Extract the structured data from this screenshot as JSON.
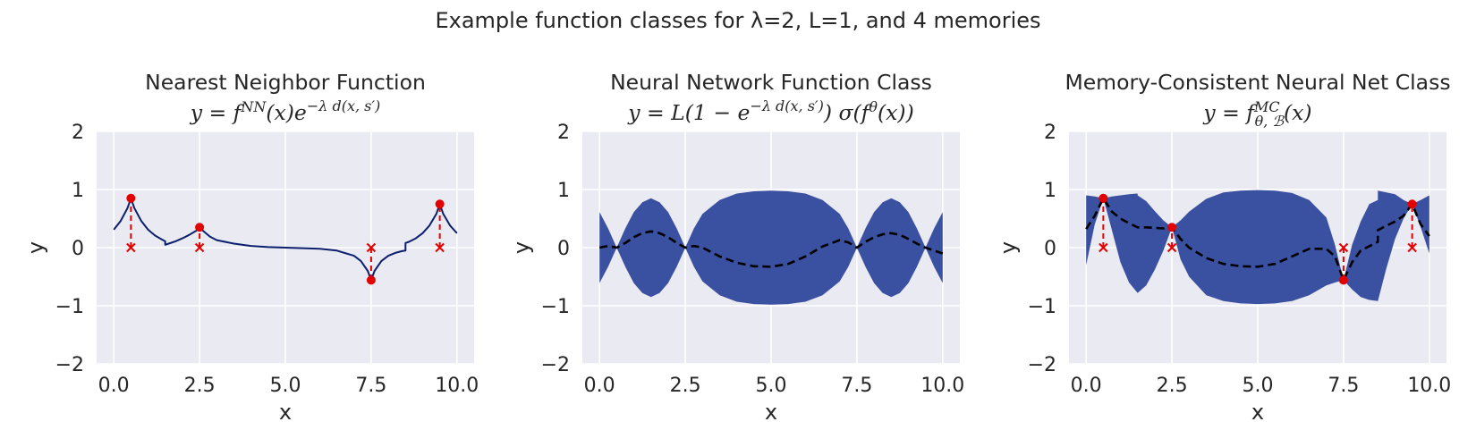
{
  "figure": {
    "suptitle": "Example function classes for λ=2, L=1, and 4 memories"
  },
  "chart_data": [
    {
      "type": "line",
      "title": "Nearest Neighbor Function",
      "subtitle": "y = f^NN(x)e^(−λ d(x,s′))",
      "xlabel": "x",
      "ylabel": "y",
      "xlim": [
        -0.5,
        10.5
      ],
      "ylim": [
        -2,
        2
      ],
      "xticks": [
        0.0,
        2.5,
        5.0,
        7.5,
        10.0
      ],
      "yticks": [
        -2,
        -1,
        0,
        1,
        2
      ],
      "grid": true,
      "memories": {
        "x": [
          0.5,
          2.5,
          7.5,
          9.5
        ],
        "y": [
          0.85,
          0.35,
          -0.56,
          0.75
        ]
      },
      "series": [
        {
          "type": "line",
          "color": "#0b1f6e",
          "x": [
            0.0,
            0.2,
            0.4,
            0.5,
            0.6,
            0.8,
            1.0,
            1.2,
            1.4,
            1.5,
            1.5,
            1.6,
            1.8,
            2.0,
            2.2,
            2.4,
            2.5,
            2.6,
            2.8,
            3.0,
            3.5,
            4.0,
            4.5,
            5.0,
            5.5,
            6.0,
            6.5,
            7.0,
            7.2,
            7.4,
            7.5,
            7.6,
            7.8,
            8.0,
            8.2,
            8.4,
            8.5,
            8.5,
            8.6,
            8.8,
            9.0,
            9.2,
            9.4,
            9.5,
            9.6,
            9.8,
            10.0
          ],
          "y": [
            0.31,
            0.46,
            0.68,
            0.85,
            0.68,
            0.46,
            0.31,
            0.21,
            0.14,
            0.11,
            0.05,
            0.07,
            0.11,
            0.16,
            0.22,
            0.29,
            0.35,
            0.29,
            0.19,
            0.13,
            0.07,
            0.03,
            0.01,
            0.0,
            -0.01,
            -0.02,
            -0.05,
            -0.14,
            -0.23,
            -0.4,
            -0.56,
            -0.4,
            -0.23,
            -0.14,
            -0.09,
            -0.06,
            -0.05,
            0.08,
            0.1,
            0.16,
            0.25,
            0.38,
            0.58,
            0.75,
            0.58,
            0.38,
            0.25
          ]
        },
        {
          "type": "scatter",
          "name": "memory",
          "color": "#e30000",
          "x": [
            0.5,
            2.5,
            7.5,
            9.5
          ],
          "y": [
            0.85,
            0.35,
            -0.56,
            0.75
          ]
        },
        {
          "type": "marker_x",
          "color": "#e30000",
          "x": [
            0.5,
            2.5,
            7.5,
            9.5
          ],
          "y": [
            0.0,
            0.0,
            0.0,
            0.0
          ]
        }
      ]
    },
    {
      "type": "area",
      "title": "Neural Network Function Class",
      "subtitle": "y = L(1 − e^(−λ d(x,s′))) σ(f^θ(x))",
      "xlabel": "x",
      "ylabel": "y",
      "xlim": [
        -0.5,
        10.5
      ],
      "ylim": [
        -2,
        2
      ],
      "xticks": [
        0.0,
        2.5,
        5.0,
        7.5,
        10.0
      ],
      "yticks": [
        -2,
        -1,
        0,
        1,
        2
      ],
      "grid": true,
      "series": [
        {
          "type": "band",
          "color": "#3a50a0",
          "x": [
            0.0,
            0.25,
            0.5,
            0.75,
            1.0,
            1.25,
            1.5,
            1.75,
            2.0,
            2.25,
            2.5,
            2.75,
            3.0,
            3.5,
            4.0,
            4.5,
            5.0,
            5.5,
            6.0,
            6.5,
            7.0,
            7.25,
            7.5,
            7.75,
            8.0,
            8.25,
            8.5,
            8.75,
            9.0,
            9.25,
            9.5,
            9.75,
            10.0
          ],
          "upper": [
            0.61,
            0.33,
            0.0,
            0.33,
            0.61,
            0.78,
            0.85,
            0.78,
            0.61,
            0.33,
            0.0,
            0.33,
            0.58,
            0.82,
            0.93,
            0.97,
            0.98,
            0.97,
            0.93,
            0.82,
            0.58,
            0.33,
            0.0,
            0.33,
            0.61,
            0.78,
            0.85,
            0.78,
            0.61,
            0.33,
            0.0,
            0.33,
            0.61
          ],
          "lower": [
            -0.61,
            -0.33,
            0.0,
            -0.33,
            -0.61,
            -0.78,
            -0.85,
            -0.78,
            -0.61,
            -0.33,
            0.0,
            -0.33,
            -0.58,
            -0.82,
            -0.93,
            -0.97,
            -0.98,
            -0.97,
            -0.93,
            -0.82,
            -0.58,
            -0.33,
            0.0,
            -0.33,
            -0.61,
            -0.78,
            -0.85,
            -0.78,
            -0.61,
            -0.33,
            0.0,
            -0.33,
            -0.61
          ]
        },
        {
          "type": "dashed_line",
          "color": "#000000",
          "x": [
            0.0,
            0.25,
            0.5,
            0.75,
            1.0,
            1.25,
            1.5,
            1.75,
            2.0,
            2.25,
            2.5,
            2.75,
            3.0,
            3.5,
            4.0,
            4.5,
            5.0,
            5.5,
            6.0,
            6.5,
            7.0,
            7.25,
            7.5,
            7.75,
            8.0,
            8.25,
            8.5,
            8.75,
            9.0,
            9.25,
            9.5,
            9.75,
            10.0
          ],
          "y": [
            0.0,
            0.03,
            0.0,
            0.08,
            0.18,
            0.25,
            0.28,
            0.25,
            0.18,
            0.08,
            0.0,
            0.03,
            0.0,
            -0.15,
            -0.26,
            -0.32,
            -0.33,
            -0.28,
            -0.15,
            0.02,
            0.13,
            0.09,
            0.0,
            0.1,
            0.18,
            0.23,
            0.25,
            0.22,
            0.15,
            0.07,
            0.0,
            -0.05,
            -0.1
          ]
        }
      ]
    },
    {
      "type": "area",
      "title": "Memory-Consistent Neural Net Class",
      "subtitle": "y = f^MC_(θ,ℬ)(x)",
      "xlabel": "x",
      "ylabel": "y",
      "xlim": [
        -0.5,
        10.5
      ],
      "ylim": [
        -2,
        2
      ],
      "xticks": [
        0.0,
        2.5,
        5.0,
        7.5,
        10.0
      ],
      "yticks": [
        -2,
        -1,
        0,
        1,
        2
      ],
      "grid": true,
      "memories": {
        "x": [
          0.5,
          2.5,
          7.5,
          9.5
        ],
        "y": [
          0.85,
          0.35,
          -0.56,
          0.75
        ]
      },
      "series": [
        {
          "type": "band",
          "color": "#3a50a0",
          "x": [
            0.0,
            0.25,
            0.5,
            0.75,
            1.0,
            1.25,
            1.5,
            1.5,
            1.75,
            2.0,
            2.25,
            2.5,
            2.75,
            3.0,
            3.5,
            4.0,
            4.5,
            5.0,
            5.5,
            6.0,
            6.5,
            7.0,
            7.25,
            7.5,
            7.75,
            8.0,
            8.25,
            8.5,
            8.5,
            8.75,
            9.0,
            9.25,
            9.5,
            9.75,
            10.0
          ],
          "upper": [
            0.9,
            0.88,
            0.85,
            0.88,
            0.9,
            0.92,
            0.93,
            0.9,
            0.8,
            0.63,
            0.47,
            0.35,
            0.47,
            0.62,
            0.84,
            0.95,
            0.98,
            0.99,
            0.98,
            0.94,
            0.82,
            0.52,
            0.05,
            -0.56,
            0.05,
            0.45,
            0.75,
            0.82,
            0.98,
            0.95,
            0.92,
            0.82,
            0.75,
            0.82,
            0.9
          ],
          "lower": [
            -0.3,
            0.4,
            0.85,
            0.3,
            -0.25,
            -0.6,
            -0.78,
            -0.78,
            -0.65,
            -0.38,
            -0.05,
            0.35,
            -0.2,
            -0.5,
            -0.82,
            -0.92,
            -0.96,
            -0.97,
            -0.96,
            -0.92,
            -0.82,
            -0.65,
            -0.6,
            -0.56,
            -0.72,
            -0.85,
            -0.9,
            -0.92,
            -0.92,
            -0.35,
            0.15,
            0.5,
            0.75,
            0.35,
            -0.1
          ]
        },
        {
          "type": "dashed_line",
          "color": "#000000",
          "x": [
            0.0,
            0.25,
            0.5,
            0.75,
            1.0,
            1.25,
            1.5,
            1.75,
            2.0,
            2.25,
            2.5,
            2.75,
            3.0,
            3.5,
            4.0,
            4.5,
            5.0,
            5.5,
            6.0,
            6.5,
            7.0,
            7.25,
            7.5,
            7.75,
            8.0,
            8.5,
            8.5,
            8.75,
            9.0,
            9.25,
            9.5,
            9.75,
            10.0
          ],
          "y": [
            0.32,
            0.55,
            0.85,
            0.62,
            0.5,
            0.42,
            0.35,
            0.35,
            0.34,
            0.33,
            0.35,
            0.15,
            0.0,
            -0.18,
            -0.28,
            -0.32,
            -0.33,
            -0.28,
            -0.15,
            -0.02,
            -0.02,
            -0.15,
            -0.56,
            -0.25,
            -0.05,
            0.1,
            0.3,
            0.38,
            0.45,
            0.55,
            0.75,
            0.4,
            0.2
          ]
        },
        {
          "type": "scatter",
          "name": "memory",
          "color": "#e30000",
          "x": [
            0.5,
            2.5,
            7.5,
            9.5
          ],
          "y": [
            0.85,
            0.35,
            -0.56,
            0.75
          ]
        },
        {
          "type": "marker_x",
          "color": "#e30000",
          "x": [
            0.5,
            2.5,
            7.5,
            9.5
          ],
          "y": [
            0.0,
            0.0,
            0.0,
            0.0
          ]
        }
      ]
    }
  ]
}
